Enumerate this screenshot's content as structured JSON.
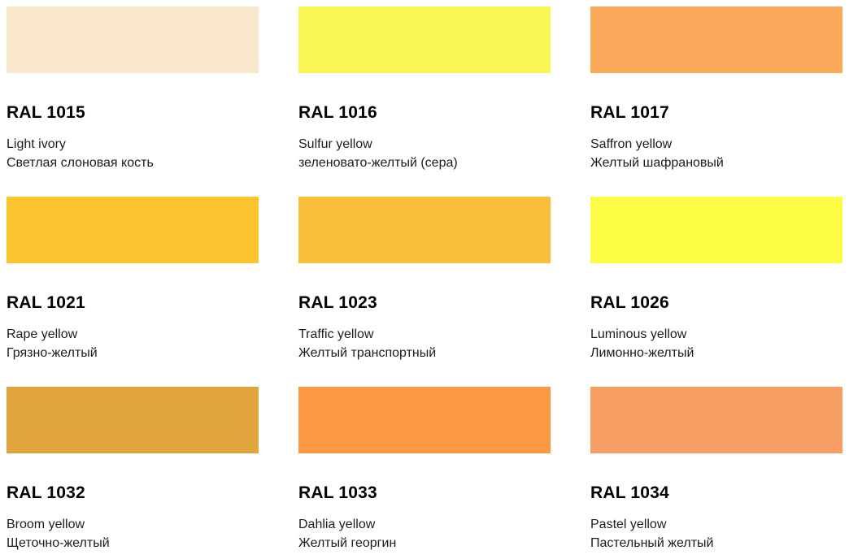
{
  "page": {
    "background": "#FFFFFF",
    "text_color": "#1C1C1C",
    "code_color": "#000000"
  },
  "swatches": [
    {
      "code": "RAL 1015",
      "name_en": "Light ivory",
      "name_ru": "Светлая слоновая кость",
      "color": "#FAE8CD"
    },
    {
      "code": "RAL 1016",
      "name_en": "Sulfur yellow",
      "name_ru": "зеленовато-желтый (сера)",
      "color": "#F8F554"
    },
    {
      "code": "RAL 1017",
      "name_en": "Saffron yellow",
      "name_ru": "Желтый шафрановый",
      "color": "#FBAA5C"
    },
    {
      "code": "RAL 1021",
      "name_en": "Rape yellow",
      "name_ru": "Грязно-желтый",
      "color": "#FCC42F"
    },
    {
      "code": "RAL 1023",
      "name_en": "Traffic yellow",
      "name_ru": "Желтый транспортный",
      "color": "#FBBE3B"
    },
    {
      "code": "RAL 1026",
      "name_en": "Luminous yellow",
      "name_ru": "Лимонно-желтый",
      "color": "#FDFD45"
    },
    {
      "code": "RAL 1032",
      "name_en": "Broom yellow",
      "name_ru": "Щеточно-желтый",
      "color": "#E0A53C"
    },
    {
      "code": "RAL 1033",
      "name_en": "Dahlia yellow",
      "name_ru": "Желтый георгин",
      "color": "#FC9841"
    },
    {
      "code": "RAL 1034",
      "name_en": "Pastel yellow",
      "name_ru": "Пастельный желтый",
      "color": "#F69E63"
    }
  ]
}
